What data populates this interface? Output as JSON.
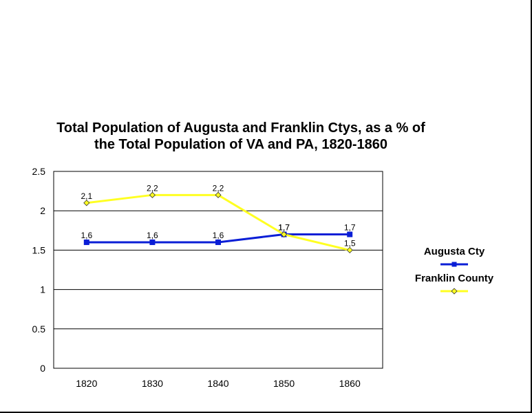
{
  "chart_data": {
    "type": "line",
    "title_line1": "Total Population of Augusta and Franklin Ctys, as a % of",
    "title_line2": "the Total Population of VA and PA, 1820-1860",
    "xlabel": "",
    "ylabel": "",
    "categories": [
      "1820",
      "1830",
      "1840",
      "1850",
      "1860"
    ],
    "ylim": [
      0,
      2.5
    ],
    "yticks": [
      "0",
      "0.5",
      "1",
      "1.5",
      "2",
      "2.5"
    ],
    "grid": true,
    "legend_position": "right",
    "series": [
      {
        "name": "Augusta Cty",
        "values": [
          1.6,
          1.6,
          1.6,
          1.7,
          1.7
        ],
        "labels": [
          "1,6",
          "1,6",
          "1,6",
          "1,7",
          "1,7"
        ],
        "color": "#0a1ed6",
        "marker": "square"
      },
      {
        "name": "Franklin County",
        "values": [
          2.1,
          2.2,
          2.2,
          1.7,
          1.5
        ],
        "labels": [
          "2,1",
          "2,2",
          "2,2",
          "1,7",
          "1,5"
        ],
        "color": "#ffff22",
        "marker": "diamond"
      }
    ]
  }
}
